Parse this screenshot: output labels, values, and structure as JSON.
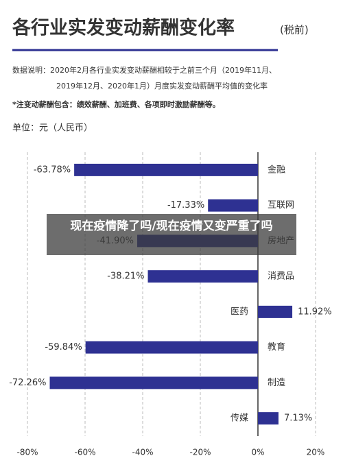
{
  "chart_data": {
    "type": "bar",
    "orientation": "horizontal",
    "title": "各行业实发变动薪酬变化率",
    "subtitle": "(税前)",
    "notes": [
      "数据说明：2020年2月各行业实发变动薪酬相较于之前三个月（2019年11月、",
      "2019年12月、2020年1月）月度实发变动薪酬平均值的变化率"
    ],
    "footnote": "*注变动薪酬包含：绩效薪酬、加班费、各项即时激励薪酬等。",
    "unit": "单位：元（人民币）",
    "overlay": "现在疫情降了吗/现在疫情又变严重了吗",
    "categories": [
      "金融",
      "互联网",
      "房地产",
      "消费品",
      "医药",
      "教育",
      "制造",
      "传媒"
    ],
    "values": [
      -63.78,
      -17.33,
      -41.9,
      -38.21,
      11.92,
      -59.84,
      -72.26,
      7.13
    ],
    "value_labels": [
      "-63.78%",
      "-17.33%",
      "-41.90%",
      "-38.21%",
      "11.92%",
      "-59.84%",
      "-72.26%",
      "7.13%"
    ],
    "color": "#2e3192",
    "xlim": [
      -80,
      20
    ],
    "xticks": [
      {
        "value": -80,
        "label": "-80%"
      },
      {
        "value": -60,
        "label": "-60%"
      },
      {
        "value": -40,
        "label": "-40%"
      },
      {
        "value": -20,
        "label": "-20%"
      },
      {
        "value": 0,
        "label": "0%"
      },
      {
        "value": 20,
        "label": "20%"
      }
    ],
    "grid": true
  }
}
